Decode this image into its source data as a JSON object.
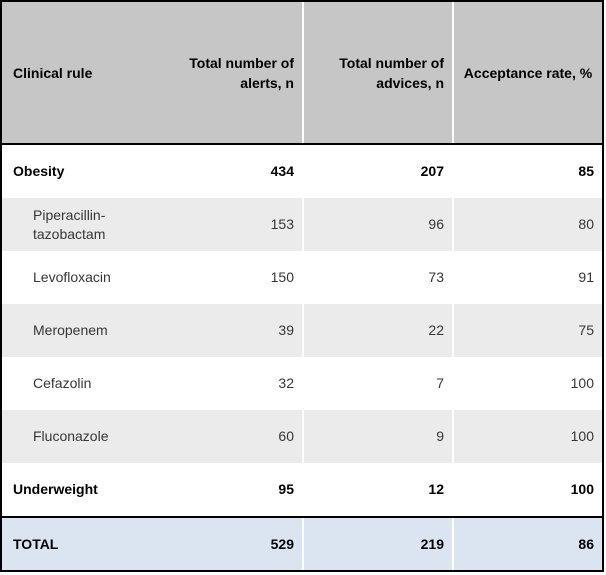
{
  "table": {
    "headers": [
      "Clinical rule",
      "Total number of alerts, n",
      "Total number of advices, n",
      "Acceptance rate, %"
    ],
    "rows": [
      {
        "rule": "Obesity",
        "alerts": "434",
        "advices": "207",
        "acceptance": "85"
      },
      {
        "rule": "Piperacillin-tazobactam",
        "alerts": "153",
        "advices": "96",
        "acceptance": "80"
      },
      {
        "rule": "Levofloxacin",
        "alerts": "150",
        "advices": "73",
        "acceptance": "91"
      },
      {
        "rule": "Meropenem",
        "alerts": "39",
        "advices": "22",
        "acceptance": "75"
      },
      {
        "rule": "Cefazolin",
        "alerts": "32",
        "advices": "7",
        "acceptance": "100"
      },
      {
        "rule": "Fluconazole",
        "alerts": "60",
        "advices": "9",
        "acceptance": "100"
      },
      {
        "rule": "Underweight",
        "alerts": "95",
        "advices": "12",
        "acceptance": "100"
      }
    ],
    "total": {
      "rule": "TOTAL",
      "alerts": "529",
      "advices": "219",
      "acceptance": "86"
    }
  },
  "colors": {
    "header_bg": "#c6c6c6",
    "row_shaded_bg": "#ebebeb",
    "total_bg": "#dbe5f1",
    "border": "#000000",
    "sep": "#ffffff",
    "text_strong": "#000000",
    "text_regular": "#363636"
  }
}
